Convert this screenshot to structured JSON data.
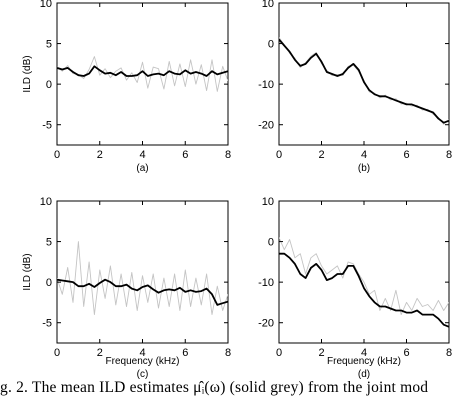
{
  "caption": "g. 2.  The mean ILD estimates μ̂ᵢ(ω)  (solid grey) from the joint mod",
  "chart_data": [
    {
      "type": "line",
      "panel_label": "(a)",
      "xlabel": "",
      "ylabel": "ILD (dB)",
      "xlim": [
        0,
        8
      ],
      "ylim": [
        -7.5,
        10
      ],
      "xticks": [
        0,
        2,
        4,
        6,
        8
      ],
      "yticks": [
        -5,
        0,
        5,
        10
      ],
      "grid": false,
      "series": [
        {
          "style": "solid black (smooth)",
          "x": [
            0,
            0.25,
            0.5,
            0.75,
            1.0,
            1.25,
            1.5,
            1.75,
            2.0,
            2.25,
            2.5,
            2.75,
            3.0,
            3.25,
            3.5,
            3.75,
            4.0,
            4.25,
            4.5,
            4.75,
            5.0,
            5.25,
            5.5,
            5.75,
            6.0,
            6.25,
            6.5,
            6.75,
            7.0,
            7.25,
            7.5,
            7.75,
            8.0
          ],
          "y": [
            2.0,
            1.8,
            2.0,
            1.5,
            1.1,
            1.0,
            1.3,
            2.2,
            1.7,
            1.3,
            1.4,
            1.1,
            1.5,
            1.0,
            1.0,
            1.1,
            1.6,
            1.0,
            1.2,
            1.3,
            1.1,
            1.6,
            1.3,
            1.2,
            1.7,
            1.3,
            1.5,
            1.3,
            1.0,
            1.6,
            1.2,
            1.4,
            1.6
          ]
        },
        {
          "style": "solid grey (noisy)",
          "x": [
            0,
            0.25,
            0.5,
            0.75,
            1.0,
            1.25,
            1.5,
            1.75,
            2.0,
            2.25,
            2.5,
            2.75,
            3.0,
            3.25,
            3.5,
            3.75,
            4.0,
            4.25,
            4.5,
            4.75,
            5.0,
            5.25,
            5.5,
            5.75,
            6.0,
            6.25,
            6.5,
            6.75,
            7.0,
            7.25,
            7.5,
            7.75,
            8.0
          ],
          "y": [
            2.1,
            1.6,
            2.3,
            1.3,
            1.2,
            0.7,
            1.8,
            3.4,
            1.1,
            1.9,
            0.8,
            1.6,
            2.0,
            0.5,
            1.4,
            0.2,
            2.7,
            -0.5,
            2.1,
            1.9,
            -0.6,
            2.8,
            -0.2,
            2.5,
            -0.3,
            3.0,
            0.0,
            2.4,
            -0.8,
            3.0,
            -0.9,
            2.2,
            0.4
          ]
        }
      ]
    },
    {
      "type": "line",
      "panel_label": "(b)",
      "xlabel": "",
      "ylabel": "",
      "xlim": [
        0,
        8
      ],
      "ylim": [
        -25,
        10
      ],
      "xticks": [
        0,
        2,
        4,
        6,
        8
      ],
      "yticks": [
        -20,
        -10,
        0,
        10
      ],
      "grid": false,
      "series": [
        {
          "style": "solid black (smooth)",
          "x": [
            0,
            0.25,
            0.5,
            0.75,
            1.0,
            1.25,
            1.5,
            1.75,
            2.0,
            2.25,
            2.5,
            2.75,
            3.0,
            3.25,
            3.5,
            3.75,
            4.0,
            4.25,
            4.5,
            4.75,
            5.0,
            5.25,
            5.5,
            5.75,
            6.0,
            6.25,
            6.5,
            6.75,
            7.0,
            7.25,
            7.5,
            7.75,
            8.0
          ],
          "y": [
            1.0,
            -0.5,
            -2.0,
            -4.0,
            -5.5,
            -5.0,
            -3.5,
            -2.5,
            -4.5,
            -7.0,
            -7.5,
            -8.0,
            -7.5,
            -6.0,
            -5.0,
            -6.5,
            -9.5,
            -11.5,
            -12.5,
            -13.0,
            -13.0,
            -13.5,
            -14.0,
            -14.5,
            -15.0,
            -15.0,
            -15.5,
            -16.0,
            -16.5,
            -17.0,
            -18.5,
            -19.5,
            -19.0
          ]
        },
        {
          "style": "solid grey (noisy)",
          "x": [
            0,
            0.25,
            0.5,
            0.75,
            1.0,
            1.25,
            1.5,
            1.75,
            2.0,
            2.25,
            2.5,
            2.75,
            3.0,
            3.25,
            3.5,
            3.75,
            4.0,
            4.25,
            4.5,
            4.75,
            5.0,
            5.25,
            5.5,
            5.75,
            6.0,
            6.25,
            6.5,
            6.75,
            7.0,
            7.25,
            7.5,
            7.75,
            8.0
          ],
          "y": [
            1.5,
            -0.3,
            -2.4,
            -3.6,
            -5.9,
            -4.7,
            -3.1,
            -2.2,
            -4.9,
            -6.6,
            -7.9,
            -7.6,
            -7.9,
            -5.6,
            -5.3,
            -6.9,
            -9.1,
            -11.9,
            -12.2,
            -13.4,
            -12.7,
            -13.9,
            -13.6,
            -14.9,
            -14.7,
            -15.4,
            -15.2,
            -16.4,
            -16.2,
            -17.4,
            -18.2,
            -19.9,
            -18.8
          ]
        }
      ]
    },
    {
      "type": "line",
      "panel_label": "(c)",
      "xlabel": "Frequency (kHz)",
      "ylabel": "ILD (dB)",
      "xlim": [
        0,
        8
      ],
      "ylim": [
        -7.5,
        10
      ],
      "xticks": [
        0,
        2,
        4,
        6,
        8
      ],
      "yticks": [
        -5,
        0,
        5,
        10
      ],
      "grid": false,
      "series": [
        {
          "style": "solid black (smooth)",
          "x": [
            0,
            0.25,
            0.5,
            0.75,
            1.0,
            1.25,
            1.5,
            1.75,
            2.0,
            2.25,
            2.5,
            2.75,
            3.0,
            3.25,
            3.5,
            3.75,
            4.0,
            4.25,
            4.5,
            4.75,
            5.0,
            5.25,
            5.5,
            5.75,
            6.0,
            6.25,
            6.5,
            6.75,
            7.0,
            7.25,
            7.5,
            7.75,
            8.0
          ],
          "y": [
            0.3,
            0.2,
            0.1,
            0.0,
            -0.5,
            -0.5,
            -0.2,
            -0.6,
            -0.1,
            0.3,
            0.0,
            -0.5,
            -0.5,
            -0.3,
            -0.8,
            -1.0,
            -0.6,
            -0.4,
            -0.9,
            -1.3,
            -1.0,
            -0.9,
            -1.0,
            -0.7,
            -1.2,
            -1.0,
            -1.2,
            -1.1,
            -0.8,
            -1.5,
            -2.8,
            -2.6,
            -2.4
          ]
        },
        {
          "style": "solid grey (noisy)",
          "x": [
            0,
            0.25,
            0.5,
            0.75,
            1.0,
            1.25,
            1.5,
            1.75,
            2.0,
            2.25,
            2.5,
            2.75,
            3.0,
            3.25,
            3.5,
            3.75,
            4.0,
            4.25,
            4.5,
            4.75,
            5.0,
            5.25,
            5.5,
            5.75,
            6.0,
            6.25,
            6.5,
            6.75,
            7.0,
            7.25,
            7.5,
            7.75,
            8.0
          ],
          "y": [
            0.5,
            -1.5,
            1.8,
            -2.5,
            5.0,
            -3.0,
            2.5,
            -4.0,
            1.5,
            -2.0,
            2.0,
            -2.8,
            1.0,
            -3.0,
            1.2,
            -3.5,
            0.8,
            -2.5,
            1.0,
            -3.2,
            0.5,
            -3.0,
            1.0,
            -3.5,
            1.5,
            -3.0,
            0.5,
            -2.8,
            1.0,
            -4.0,
            -0.5,
            -3.5,
            -1.5
          ]
        }
      ]
    },
    {
      "type": "line",
      "panel_label": "(d)",
      "xlabel": "Frequency (kHz)",
      "ylabel": "",
      "xlim": [
        0,
        8
      ],
      "ylim": [
        -25,
        10
      ],
      "xticks": [
        0,
        2,
        4,
        6,
        8
      ],
      "yticks": [
        -20,
        -10,
        0,
        10
      ],
      "grid": false,
      "series": [
        {
          "style": "solid black (smooth)",
          "x": [
            0,
            0.25,
            0.5,
            0.75,
            1.0,
            1.25,
            1.5,
            1.75,
            2.0,
            2.25,
            2.5,
            2.75,
            3.0,
            3.25,
            3.5,
            3.75,
            4.0,
            4.25,
            4.5,
            4.75,
            5.0,
            5.25,
            5.5,
            5.75,
            6.0,
            6.25,
            6.5,
            6.75,
            7.0,
            7.25,
            7.5,
            7.75,
            8.0
          ],
          "y": [
            -3.0,
            -3.0,
            -4.0,
            -5.5,
            -8.0,
            -9.0,
            -6.5,
            -5.5,
            -7.0,
            -9.5,
            -9.0,
            -8.0,
            -8.0,
            -6.0,
            -6.0,
            -8.5,
            -11.5,
            -13.5,
            -15.0,
            -16.0,
            -16.0,
            -16.5,
            -17.0,
            -17.0,
            -17.5,
            -17.5,
            -17.0,
            -18.0,
            -18.0,
            -18.0,
            -19.0,
            -20.5,
            -21.0
          ]
        },
        {
          "style": "solid grey (noisy)",
          "x": [
            0,
            0.25,
            0.5,
            0.75,
            1.0,
            1.25,
            1.5,
            1.75,
            2.0,
            2.25,
            2.5,
            2.75,
            3.0,
            3.25,
            3.5,
            3.75,
            4.0,
            4.25,
            4.5,
            4.75,
            5.0,
            5.25,
            5.5,
            5.75,
            6.0,
            6.25,
            6.5,
            6.75,
            7.0,
            7.25,
            7.5,
            7.75,
            8.0
          ],
          "y": [
            1.0,
            -2.0,
            0.5,
            -4.0,
            -3.0,
            -8.0,
            -4.0,
            -3.0,
            -6.0,
            -8.0,
            -7.0,
            -6.0,
            -9.0,
            -5.0,
            -5.5,
            -8.0,
            -10.0,
            -13.0,
            -12.0,
            -17.0,
            -14.0,
            -17.0,
            -12.0,
            -18.0,
            -15.0,
            -17.0,
            -14.0,
            -16.0,
            -15.5,
            -17.0,
            -14.5,
            -17.0,
            -15.0
          ]
        }
      ]
    }
  ]
}
